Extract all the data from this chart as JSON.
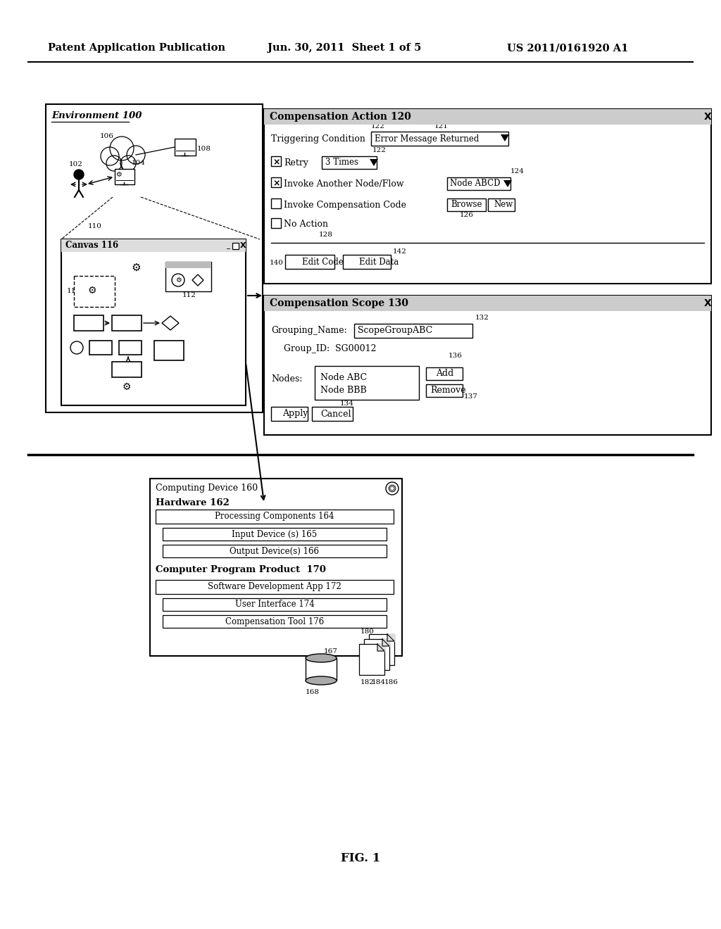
{
  "bg_color": "#ffffff",
  "header_left": "Patent Application Publication",
  "header_mid": "Jun. 30, 2011  Sheet 1 of 5",
  "header_right": "US 2011/0161920 A1",
  "fig_label": "FIG. 1",
  "env_title": "Environment 100",
  "canvas_title": "Canvas 116",
  "comp_action_title": "Compensation Action 120",
  "comp_scope_title": "Compensation Scope 130",
  "computing_title": "Computing Device 160",
  "hardware_title": "Hardware 162",
  "proc_comp": "Processing Components 164",
  "input_dev": "Input Device (s) 165",
  "output_dev": "Output Device(s) 166",
  "cpp_title": "Computer Program Product  170",
  "sw_dev": "Software Development App 172",
  "ui": "User Interface 174",
  "comp_tool": "Compensation Tool 176"
}
